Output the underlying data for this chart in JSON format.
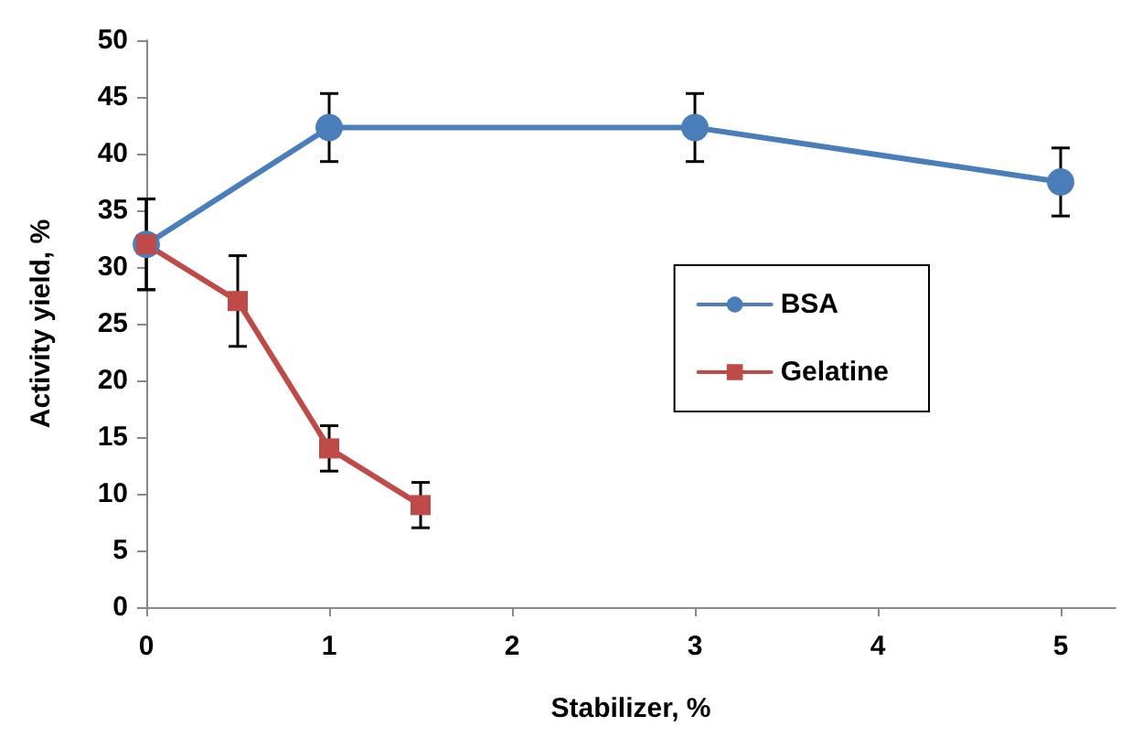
{
  "chart_data": {
    "type": "line",
    "xlabel": "Stabilizer, %",
    "ylabel": "Activity yield, %",
    "xlim": [
      0,
      5.3
    ],
    "xticks": [
      0,
      1,
      2,
      3,
      4,
      5
    ],
    "ylim": [
      0,
      50
    ],
    "yticks": [
      0,
      5,
      10,
      15,
      20,
      25,
      30,
      35,
      40,
      45,
      50
    ],
    "grid": false,
    "legend": "right",
    "series": [
      {
        "name": "BSA",
        "color": "#4a7ebb",
        "marker": "circle",
        "x": [
          0,
          1,
          3,
          5
        ],
        "values": [
          32,
          42.3,
          42.3,
          37.5
        ],
        "errors": [
          4,
          3,
          3,
          3
        ]
      },
      {
        "name": "Gelatine",
        "color": "#be4b48",
        "marker": "square",
        "x": [
          0,
          0.5,
          1,
          1.5
        ],
        "values": [
          32,
          27,
          14,
          9
        ],
        "errors": [
          4,
          4,
          2,
          2
        ]
      }
    ]
  }
}
